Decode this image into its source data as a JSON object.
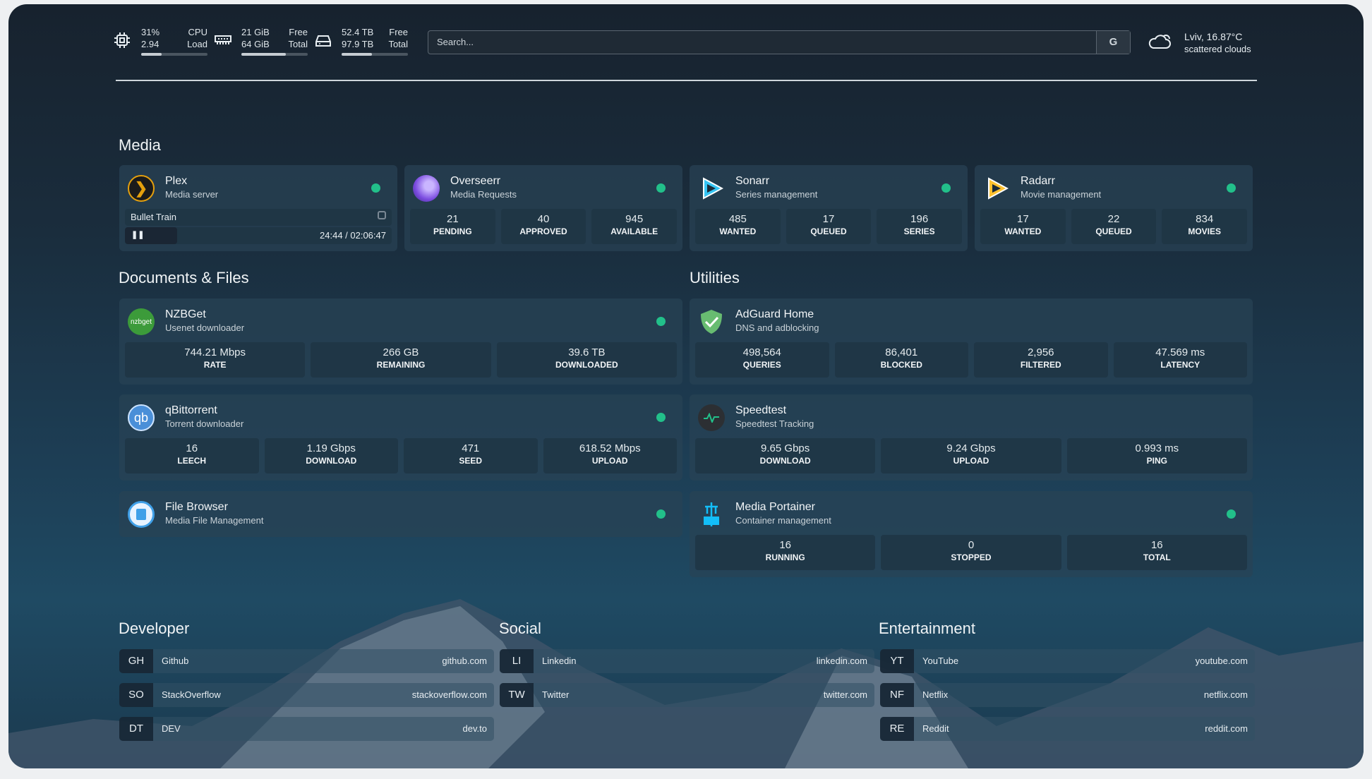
{
  "header": {
    "cpu": {
      "icon": "cpu-icon",
      "usage": "31%",
      "load": "2.94",
      "label1": "CPU",
      "label2": "Load",
      "fill": 0.31
    },
    "memory": {
      "icon": "ram-icon",
      "free": "21 GiB",
      "total": "64 GiB",
      "label1": "Free",
      "label2": "Total",
      "fill": 0.67
    },
    "disk": {
      "icon": "hard-drive-icon",
      "free": "52.4 TB",
      "total": "97.9 TB",
      "label1": "Free",
      "label2": "Total",
      "fill": 0.46
    },
    "search": {
      "placeholder": "Search...",
      "button": "G"
    },
    "weather": {
      "icon": "cloud-icon",
      "location": "Lviv, 16.87°C",
      "condition": "scattered clouds"
    }
  },
  "sections": {
    "media": "Media",
    "documents": "Documents & Files",
    "utilities": "Utilities",
    "developer": "Developer",
    "social": "Social",
    "entertainment": "Entertainment"
  },
  "status_color": "#22c08a",
  "media": [
    {
      "title": "Plex",
      "subtitle": "Media server",
      "icon": "plex-icon",
      "now_playing": {
        "title": "Bullet Train",
        "time": "24:44 / 02:06:47",
        "progress": 0.195,
        "state": "paused"
      }
    },
    {
      "title": "Overseerr",
      "subtitle": "Media Requests",
      "icon": "overseerr-icon",
      "stats": [
        {
          "v": "21",
          "l": "PENDING"
        },
        {
          "v": "40",
          "l": "APPROVED"
        },
        {
          "v": "945",
          "l": "AVAILABLE"
        }
      ]
    },
    {
      "title": "Sonarr",
      "subtitle": "Series management",
      "icon": "sonarr-icon",
      "stats": [
        {
          "v": "485",
          "l": "WANTED"
        },
        {
          "v": "17",
          "l": "QUEUED"
        },
        {
          "v": "196",
          "l": "SERIES"
        }
      ]
    },
    {
      "title": "Radarr",
      "subtitle": "Movie management",
      "icon": "radarr-icon",
      "stats": [
        {
          "v": "17",
          "l": "WANTED"
        },
        {
          "v": "22",
          "l": "QUEUED"
        },
        {
          "v": "834",
          "l": "MOVIES"
        }
      ]
    }
  ],
  "documents": [
    {
      "title": "NZBGet",
      "subtitle": "Usenet downloader",
      "icon": "nzbget-icon",
      "icon_text": "nzbget",
      "stats": [
        {
          "v": "744.21 Mbps",
          "l": "RATE"
        },
        {
          "v": "266 GB",
          "l": "REMAINING"
        },
        {
          "v": "39.6 TB",
          "l": "DOWNLOADED"
        }
      ]
    },
    {
      "title": "qBittorrent",
      "subtitle": "Torrent downloader",
      "icon": "qbittorrent-icon",
      "icon_text": "qb",
      "stats": [
        {
          "v": "16",
          "l": "LEECH"
        },
        {
          "v": "1.19 Gbps",
          "l": "DOWNLOAD"
        },
        {
          "v": "471",
          "l": "SEED"
        },
        {
          "v": "618.52 Mbps",
          "l": "UPLOAD"
        }
      ]
    },
    {
      "title": "File Browser",
      "subtitle": "Media File Management",
      "icon": "file-browser-icon",
      "stats": []
    }
  ],
  "utilities": [
    {
      "title": "AdGuard Home",
      "subtitle": "DNS and adblocking",
      "icon": "adguard-shield-icon",
      "nodot": true,
      "stats": [
        {
          "v": "498,564",
          "l": "QUERIES"
        },
        {
          "v": "86,401",
          "l": "BLOCKED"
        },
        {
          "v": "2,956",
          "l": "FILTERED"
        },
        {
          "v": "47.569 ms",
          "l": "LATENCY"
        }
      ]
    },
    {
      "title": "Speedtest",
      "subtitle": "Speedtest Tracking",
      "icon": "speedtest-pulse-icon",
      "nodot": true,
      "stats": [
        {
          "v": "9.65 Gbps",
          "l": "DOWNLOAD"
        },
        {
          "v": "9.24 Gbps",
          "l": "UPLOAD"
        },
        {
          "v": "0.993 ms",
          "l": "PING"
        }
      ]
    },
    {
      "title": "Media Portainer",
      "subtitle": "Container management",
      "icon": "portainer-icon",
      "stats": [
        {
          "v": "16",
          "l": "RUNNING"
        },
        {
          "v": "0",
          "l": "STOPPED"
        },
        {
          "v": "16",
          "l": "TOTAL"
        }
      ]
    }
  ],
  "bookmarks": {
    "developer": [
      {
        "abbr": "GH",
        "name": "Github",
        "url": "github.com"
      },
      {
        "abbr": "SO",
        "name": "StackOverflow",
        "url": "stackoverflow.com"
      },
      {
        "abbr": "DT",
        "name": "DEV",
        "url": "dev.to"
      }
    ],
    "social": [
      {
        "abbr": "LI",
        "name": "Linkedin",
        "url": "linkedin.com"
      },
      {
        "abbr": "TW",
        "name": "Twitter",
        "url": "twitter.com"
      }
    ],
    "entertainment": [
      {
        "abbr": "YT",
        "name": "YouTube",
        "url": "youtube.com"
      },
      {
        "abbr": "NF",
        "name": "Netflix",
        "url": "netflix.com"
      },
      {
        "abbr": "RE",
        "name": "Reddit",
        "url": "reddit.com"
      }
    ]
  }
}
